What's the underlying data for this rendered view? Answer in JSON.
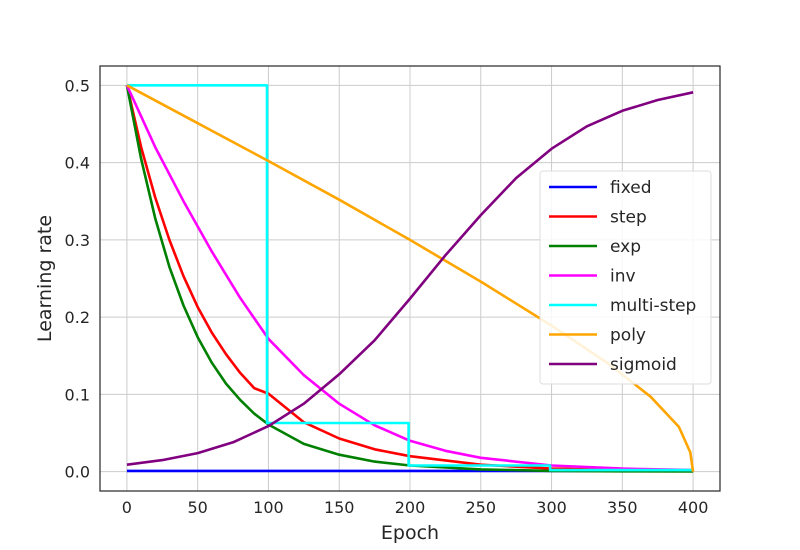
{
  "chart_data": {
    "type": "line",
    "xlabel": "Epoch",
    "ylabel": "Learning rate",
    "xlim": [
      -19,
      419
    ],
    "ylim": [
      -0.025,
      0.525
    ],
    "xticks": [
      0,
      50,
      100,
      150,
      200,
      250,
      300,
      350,
      400
    ],
    "yticks": [
      0.0,
      0.1,
      0.2,
      0.3,
      0.4,
      0.5
    ],
    "xtick_labels": [
      "0",
      "50",
      "100",
      "150",
      "200",
      "250",
      "300",
      "350",
      "400"
    ],
    "ytick_labels": [
      "0.0",
      "0.1",
      "0.2",
      "0.3",
      "0.4",
      "0.5"
    ],
    "grid": true,
    "legend_position": "center-right",
    "series": [
      {
        "name": "fixed",
        "color": "#0000ff",
        "x": [
          0,
          400
        ],
        "y": [
          0.001,
          0.001
        ]
      },
      {
        "name": "step",
        "color": "#ff0000",
        "x": [
          0,
          10,
          20,
          30,
          40,
          50,
          60,
          70,
          80,
          90,
          100,
          125,
          150,
          175,
          200,
          250,
          300,
          350,
          400
        ],
        "y": [
          0.5,
          0.42,
          0.355,
          0.3,
          0.253,
          0.213,
          0.18,
          0.152,
          0.128,
          0.108,
          0.101,
          0.064,
          0.043,
          0.029,
          0.02,
          0.009,
          0.004,
          0.002,
          0.001
        ]
      },
      {
        "name": "exp",
        "color": "#008000",
        "x": [
          0,
          10,
          20,
          30,
          40,
          50,
          60,
          70,
          80,
          90,
          100,
          125,
          150,
          175,
          200,
          250,
          300,
          350,
          400
        ],
        "y": [
          0.5,
          0.405,
          0.328,
          0.265,
          0.215,
          0.174,
          0.141,
          0.114,
          0.093,
          0.075,
          0.061,
          0.036,
          0.022,
          0.013,
          0.008,
          0.003,
          0.001,
          0.0005,
          0.0002
        ]
      },
      {
        "name": "inv",
        "color": "#ff00ff",
        "x": [
          0,
          20,
          40,
          60,
          80,
          100,
          125,
          150,
          175,
          200,
          225,
          250,
          300,
          350,
          400
        ],
        "y": [
          0.5,
          0.42,
          0.35,
          0.285,
          0.225,
          0.172,
          0.125,
          0.088,
          0.06,
          0.04,
          0.027,
          0.018,
          0.008,
          0.004,
          0.002
        ]
      },
      {
        "name": "multi-step",
        "color": "#00ffff",
        "x": [
          0,
          99,
          99,
          199,
          199,
          299,
          299,
          400
        ],
        "y": [
          0.5,
          0.5,
          0.063,
          0.063,
          0.008,
          0.008,
          0.002,
          0.002
        ]
      },
      {
        "name": "poly",
        "color": "#ffa500",
        "x": [
          0,
          50,
          100,
          150,
          200,
          250,
          300,
          340,
          370,
          390,
          398,
          400
        ],
        "y": [
          0.5,
          0.451,
          0.402,
          0.352,
          0.3,
          0.246,
          0.189,
          0.14,
          0.097,
          0.058,
          0.025,
          0.0
        ]
      },
      {
        "name": "sigmoid",
        "color": "#800080",
        "x": [
          0,
          25,
          50,
          75,
          100,
          125,
          150,
          175,
          200,
          225,
          250,
          275,
          300,
          325,
          350,
          375,
          400
        ],
        "y": [
          0.009,
          0.015,
          0.024,
          0.038,
          0.059,
          0.088,
          0.126,
          0.17,
          0.224,
          0.28,
          0.332,
          0.38,
          0.418,
          0.447,
          0.467,
          0.481,
          0.491
        ]
      }
    ]
  }
}
